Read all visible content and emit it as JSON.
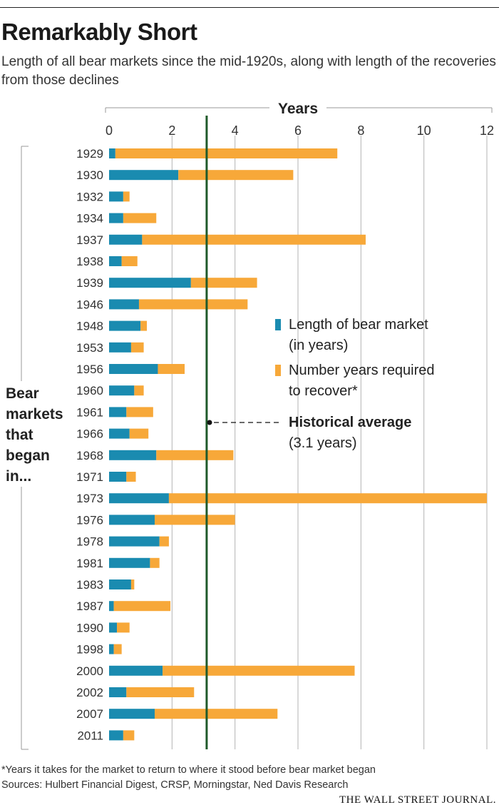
{
  "title": "Remarkably Short",
  "subtitle": "Length of all bear markets since the mid-1920s, along with length of the recoveries from those declines",
  "footnote": "*Years it takes for the market to return to where it stood before bear market began",
  "sources": "Sources: Hulbert Financial Digest, CRSP, Morningstar, Ned Davis Research",
  "brand": "THE WALL STREET JOURNAL.",
  "colors": {
    "bear": "#1a8bb0",
    "recovery": "#f7a839",
    "average": "#1f5a2a",
    "grid": "#b3b3b3"
  },
  "chart_data": {
    "type": "bar",
    "orientation": "horizontal",
    "stacked": true,
    "xlabel": "Years",
    "xlim": [
      0,
      12
    ],
    "xticks": [
      0,
      2,
      4,
      6,
      8,
      10,
      12
    ],
    "ylabel_lines": [
      "Bear",
      "markets",
      "that",
      "began",
      "in..."
    ],
    "categories": [
      "1929",
      "1930",
      "1932",
      "1934",
      "1937",
      "1938",
      "1939",
      "1946",
      "1948",
      "1953",
      "1956",
      "1960",
      "1961",
      "1966",
      "1968",
      "1971",
      "1973",
      "1976",
      "1978",
      "1981",
      "1983",
      "1987",
      "1990",
      "1998",
      "2000",
      "2002",
      "2007",
      "2011"
    ],
    "series": [
      {
        "name": "Length of bear market (in years)",
        "values": [
          0.2,
          2.2,
          0.45,
          0.45,
          1.05,
          0.4,
          2.6,
          0.95,
          1.0,
          0.7,
          1.55,
          0.8,
          0.55,
          0.65,
          1.5,
          0.55,
          1.9,
          1.45,
          1.6,
          1.3,
          0.7,
          0.15,
          0.25,
          0.15,
          1.7,
          0.55,
          1.45,
          0.45
        ]
      },
      {
        "name": "Number years required to recover*",
        "values": [
          7.05,
          3.65,
          0.2,
          1.05,
          7.1,
          0.5,
          2.1,
          3.45,
          0.2,
          0.4,
          0.85,
          0.3,
          0.85,
          0.6,
          2.45,
          0.3,
          10.1,
          2.55,
          0.3,
          0.3,
          0.1,
          1.8,
          0.4,
          0.25,
          6.1,
          2.15,
          3.9,
          0.35
        ]
      }
    ],
    "reference_line": {
      "value": 3.1,
      "label": "Historical average",
      "sublabel": "(3.1 years)"
    },
    "legend": [
      {
        "lines": [
          "Length of bear market",
          "(in years)"
        ],
        "color": "#1a8bb0"
      },
      {
        "lines": [
          "Number years required",
          "to recover*"
        ],
        "color": "#f7a839"
      }
    ]
  }
}
